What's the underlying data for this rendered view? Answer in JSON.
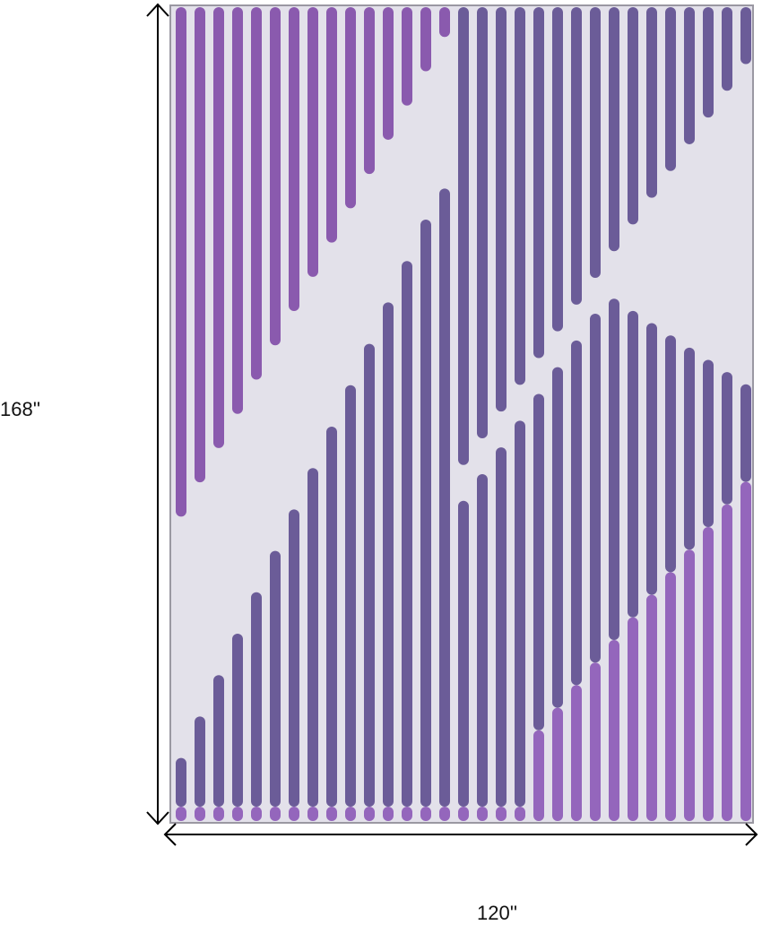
{
  "product": {
    "height_label": "168''",
    "width_label": "120''",
    "colors": {
      "background": "#e3e1ea",
      "stripe_upper": "#8a5aae",
      "stripe_middle": "#6b5c98",
      "stripe_lower": "#9466bc",
      "arrow": "#000000"
    }
  }
}
